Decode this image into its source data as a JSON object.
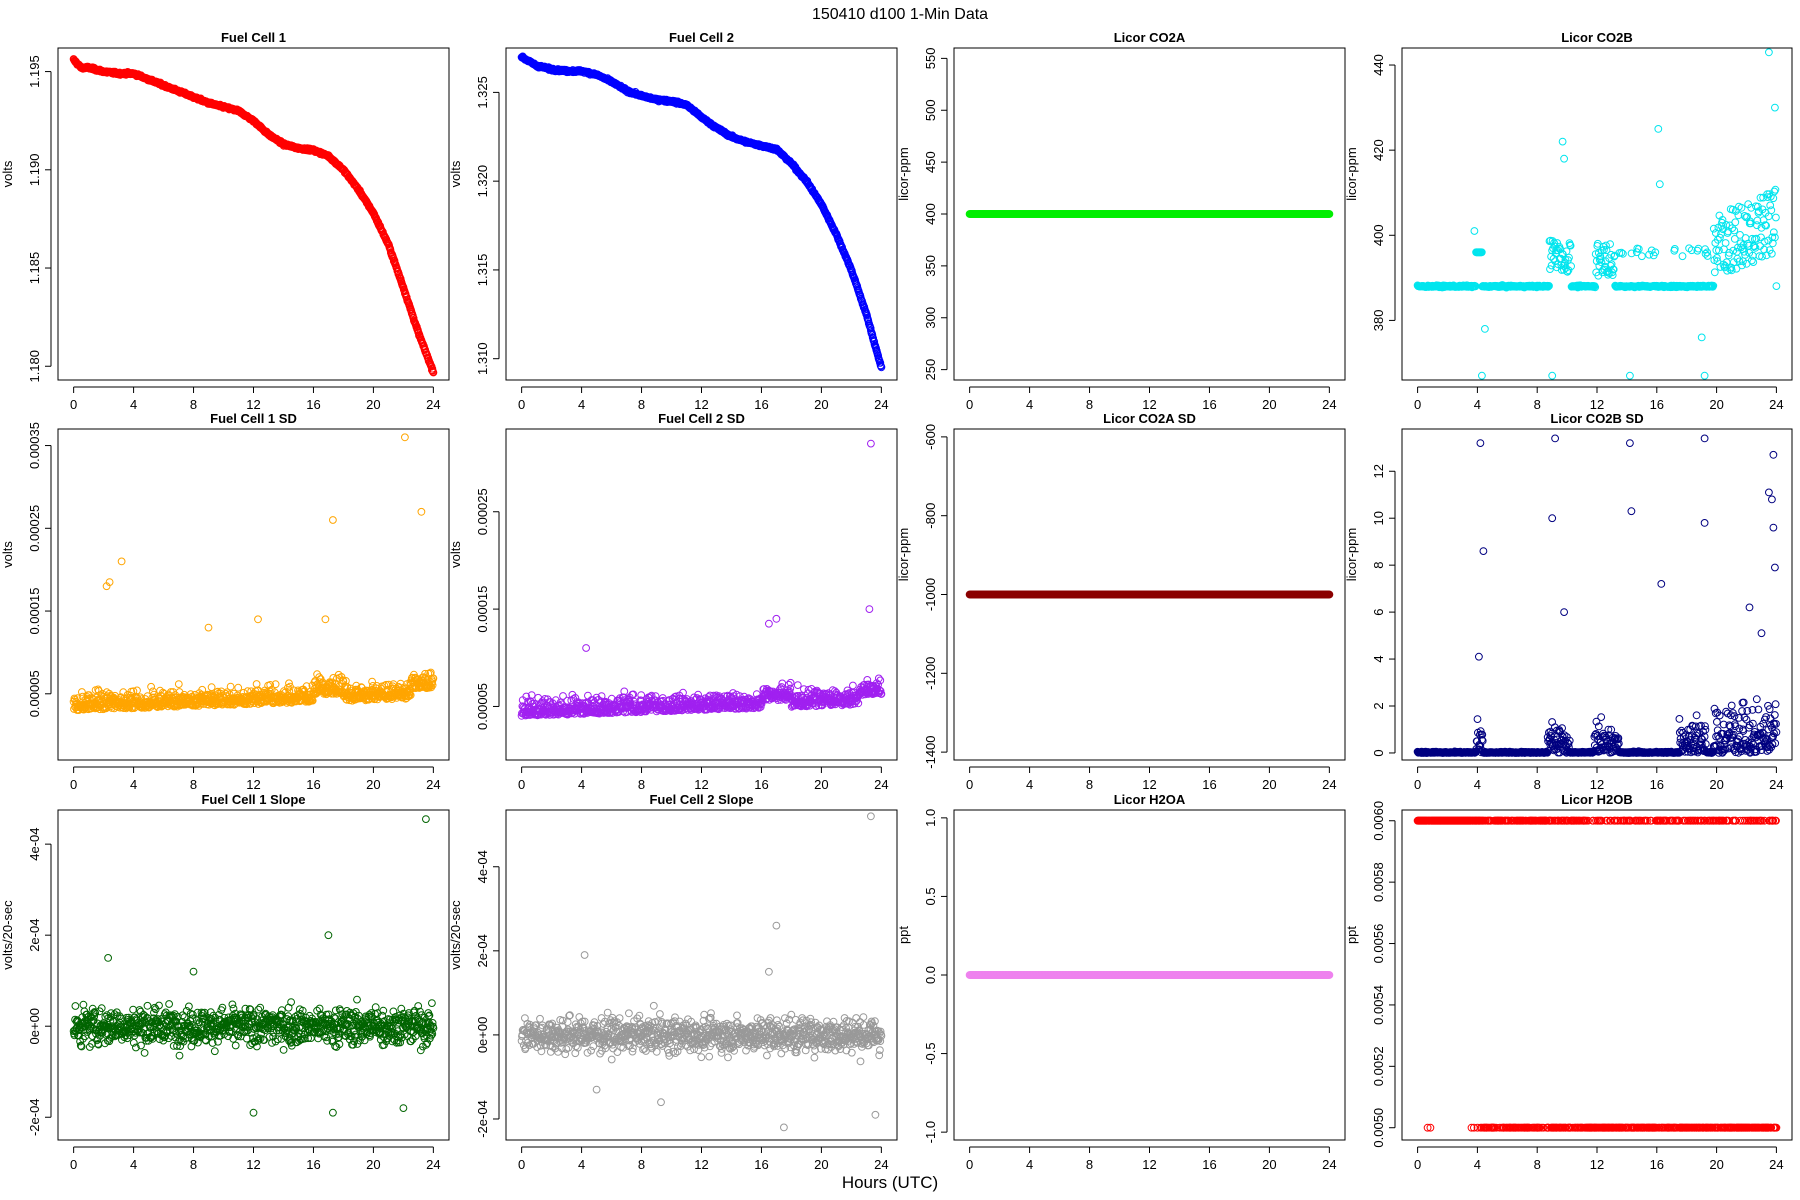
{
  "figure": {
    "title": "150410    d100    1-Min Data",
    "xlabel": "Hours (UTC)"
  },
  "chart_data": [
    {
      "type": "scatter",
      "title": "Fuel Cell 1",
      "ylabel": "volts",
      "color": "#ff0000",
      "xlim": [
        0,
        24
      ],
      "ylim": [
        1.1793,
        1.1962
      ],
      "xticks": [
        0,
        4,
        8,
        12,
        16,
        20,
        24
      ],
      "yticks": [
        1.18,
        1.185,
        1.19,
        1.195
      ],
      "ytick_labels": [
        "1.180",
        "1.185",
        "1.190",
        "1.195"
      ],
      "pattern": "curve",
      "points": [
        [
          0,
          1.1956
        ],
        [
          0.5,
          1.1952
        ],
        [
          1,
          1.1952
        ],
        [
          2,
          1.195
        ],
        [
          3,
          1.1949
        ],
        [
          4,
          1.1949
        ],
        [
          5,
          1.1946
        ],
        [
          6,
          1.1943
        ],
        [
          7,
          1.194
        ],
        [
          8,
          1.1937
        ],
        [
          9,
          1.1934
        ],
        [
          10,
          1.1932
        ],
        [
          11,
          1.193
        ],
        [
          12,
          1.1925
        ],
        [
          13,
          1.1918
        ],
        [
          14,
          1.1913
        ],
        [
          15,
          1.1911
        ],
        [
          16,
          1.191
        ],
        [
          17,
          1.1907
        ],
        [
          18,
          1.19
        ],
        [
          19,
          1.189
        ],
        [
          20,
          1.1878
        ],
        [
          21,
          1.1862
        ],
        [
          22,
          1.184
        ],
        [
          23,
          1.1817
        ],
        [
          24,
          1.1797
        ]
      ]
    },
    {
      "type": "scatter",
      "title": "Fuel Cell 2",
      "ylabel": "volts",
      "color": "#0000ff",
      "xlim": [
        0,
        24
      ],
      "ylim": [
        1.3088,
        1.3275
      ],
      "xticks": [
        0,
        4,
        8,
        12,
        16,
        20,
        24
      ],
      "yticks": [
        1.31,
        1.315,
        1.32,
        1.325
      ],
      "ytick_labels": [
        "1.310",
        "1.315",
        "1.320",
        "1.325"
      ],
      "pattern": "curve",
      "points": [
        [
          0,
          1.327
        ],
        [
          1,
          1.3265
        ],
        [
          2,
          1.3263
        ],
        [
          3,
          1.3262
        ],
        [
          4,
          1.3262
        ],
        [
          5,
          1.326
        ],
        [
          6,
          1.3256
        ],
        [
          7,
          1.3251
        ],
        [
          8,
          1.3248
        ],
        [
          9,
          1.3246
        ],
        [
          10,
          1.3245
        ],
        [
          11,
          1.3243
        ],
        [
          12,
          1.3236
        ],
        [
          13,
          1.323
        ],
        [
          14,
          1.3225
        ],
        [
          15,
          1.3222
        ],
        [
          16,
          1.322
        ],
        [
          17,
          1.3218
        ],
        [
          18,
          1.321
        ],
        [
          19,
          1.32
        ],
        [
          20,
          1.3187
        ],
        [
          21,
          1.317
        ],
        [
          22,
          1.315
        ],
        [
          23,
          1.3125
        ],
        [
          24,
          1.3095
        ]
      ]
    },
    {
      "type": "scatter",
      "title": "Licor CO2A",
      "ylabel": "licor-ppm",
      "color": "#00ee00",
      "xlim": [
        0,
        24
      ],
      "ylim": [
        240,
        560
      ],
      "xticks": [
        0,
        4,
        8,
        12,
        16,
        20,
        24
      ],
      "yticks": [
        250,
        300,
        350,
        400,
        450,
        500,
        550
      ],
      "ytick_labels": [
        "250",
        "300",
        "350",
        "400",
        "450",
        "500",
        "550"
      ],
      "pattern": "flat",
      "level": 400
    },
    {
      "type": "scatter",
      "title": "Licor CO2B",
      "ylabel": "licor-ppm",
      "color": "#00e5ee",
      "xlim": [
        0,
        24
      ],
      "ylim": [
        366,
        444
      ],
      "xticks": [
        0,
        4,
        8,
        12,
        16,
        20,
        24
      ],
      "yticks": [
        380,
        400,
        420,
        440
      ],
      "ytick_labels": [
        "380",
        "400",
        "420",
        "440"
      ],
      "pattern": "spiky",
      "level": 388,
      "highlights": [
        [
          9.7,
          422
        ],
        [
          9.8,
          418
        ],
        [
          16.1,
          425
        ],
        [
          16.2,
          412
        ],
        [
          23.5,
          443
        ],
        [
          23.9,
          430
        ],
        [
          4.3,
          367
        ],
        [
          9.0,
          367
        ],
        [
          14.2,
          367
        ],
        [
          19.2,
          367
        ],
        [
          3.8,
          401
        ],
        [
          4.5,
          378
        ],
        [
          19.0,
          376
        ]
      ]
    },
    {
      "type": "scatter",
      "title": "Fuel Cell 1 SD",
      "ylabel": "volts",
      "color": "#ffa500",
      "xlim": [
        0,
        24
      ],
      "ylim": [
        -3e-05,
        0.00037
      ],
      "xticks": [
        0,
        4,
        8,
        12,
        16,
        20,
        24
      ],
      "yticks": [
        5e-05,
        0.00015,
        0.00025,
        0.00035
      ],
      "ytick_labels": [
        "0.00005",
        "0.00015",
        "0.00025",
        "0.00035"
      ],
      "pattern": "noise",
      "base": 3e-05,
      "spread": 3e-05,
      "highlights": [
        [
          22.1,
          0.00036
        ],
        [
          23.2,
          0.00027
        ],
        [
          17.3,
          0.00026
        ],
        [
          3.2,
          0.00021
        ],
        [
          2.2,
          0.00018
        ],
        [
          2.4,
          0.000185
        ],
        [
          9,
          0.00013
        ],
        [
          12.3,
          0.00014
        ],
        [
          16.8,
          0.00014
        ]
      ]
    },
    {
      "type": "scatter",
      "title": "Fuel Cell 2 SD",
      "ylabel": "volts",
      "color": "#a020f0",
      "xlim": [
        0,
        24
      ],
      "ylim": [
        -5e-06,
        0.000335
      ],
      "xticks": [
        0,
        4,
        8,
        12,
        16,
        20,
        24
      ],
      "yticks": [
        5e-05,
        0.00015,
        0.00025
      ],
      "ytick_labels": [
        "0.00005",
        "0.00015",
        "0.00025"
      ],
      "pattern": "noise",
      "base": 4e-05,
      "spread": 2.5e-05,
      "highlights": [
        [
          23.3,
          0.00032
        ],
        [
          23.2,
          0.00015
        ],
        [
          16.5,
          0.000135
        ],
        [
          17,
          0.00014
        ],
        [
          4.3,
          0.00011
        ]
      ]
    },
    {
      "type": "scatter",
      "title": "Licor CO2A SD",
      "ylabel": "licor-ppm",
      "color": "#8b0000",
      "xlim": [
        0,
        24
      ],
      "ylim": [
        -1420,
        -580
      ],
      "xticks": [
        0,
        4,
        8,
        12,
        16,
        20,
        24
      ],
      "yticks": [
        -1400,
        -1200,
        -1000,
        -800,
        -600
      ],
      "ytick_labels": [
        "-1400",
        "-1200",
        "-1000",
        "-800",
        "-600"
      ],
      "pattern": "flat",
      "level": -1000
    },
    {
      "type": "scatter",
      "title": "Licor CO2B SD",
      "ylabel": "licor-ppm",
      "color": "#000080",
      "xlim": [
        0,
        24
      ],
      "ylim": [
        -0.3,
        13.8
      ],
      "xticks": [
        0,
        4,
        8,
        12,
        16,
        20,
        24
      ],
      "yticks": [
        0,
        2,
        4,
        6,
        8,
        10,
        12
      ],
      "ytick_labels": [
        "0",
        "2",
        "4",
        "6",
        "8",
        "10",
        "12"
      ],
      "pattern": "sdspiky",
      "highlights": [
        [
          4.2,
          13.2
        ],
        [
          9.2,
          13.4
        ],
        [
          14.2,
          13.2
        ],
        [
          19.2,
          13.4
        ],
        [
          4.4,
          8.6
        ],
        [
          9.0,
          10
        ],
        [
          14.3,
          10.3
        ],
        [
          19.2,
          9.8
        ],
        [
          23.8,
          12.7
        ],
        [
          23.5,
          11.1
        ],
        [
          23.7,
          10.8
        ],
        [
          23.8,
          9.6
        ],
        [
          16.3,
          7.2
        ],
        [
          4.1,
          4.1
        ],
        [
          23.9,
          7.9
        ],
        [
          22.2,
          6.2
        ],
        [
          23,
          5.1
        ],
        [
          9.8,
          6
        ]
      ]
    },
    {
      "type": "scatter",
      "title": "Fuel Cell 1 Slope",
      "ylabel": "volts/20-sec",
      "color": "#006400",
      "xlim": [
        0,
        24
      ],
      "ylim": [
        -0.00025,
        0.000475
      ],
      "xticks": [
        0,
        4,
        8,
        12,
        16,
        20,
        24
      ],
      "yticks": [
        -0.0002,
        0,
        0.0002,
        0.0004
      ],
      "ytick_labels": [
        "-2e-04",
        "0e+00",
        "2e-04",
        "4e-04"
      ],
      "pattern": "slope",
      "spread": 4e-05,
      "highlights": [
        [
          23.5,
          0.000455
        ],
        [
          17,
          0.0002
        ],
        [
          2.3,
          0.00015
        ],
        [
          8,
          0.00012
        ],
        [
          17.3,
          -0.00019
        ],
        [
          12,
          -0.00019
        ],
        [
          22,
          -0.00018
        ]
      ]
    },
    {
      "type": "scatter",
      "title": "Fuel Cell 2 Slope",
      "ylabel": "volts/20-sec",
      "color": "#999999",
      "xlim": [
        0,
        24
      ],
      "ylim": [
        -0.00025,
        0.000535
      ],
      "xticks": [
        0,
        4,
        8,
        12,
        16,
        20,
        24
      ],
      "yticks": [
        -0.0002,
        0,
        0.0002,
        0.0004
      ],
      "ytick_labels": [
        "-2e-04",
        "0e+00",
        "2e-04",
        "4e-04"
      ],
      "pattern": "slope",
      "spread": 4e-05,
      "highlights": [
        [
          23.3,
          0.00052
        ],
        [
          17,
          0.00026
        ],
        [
          4.2,
          0.00019
        ],
        [
          16.5,
          0.00015
        ],
        [
          17.5,
          -0.00022
        ],
        [
          5,
          -0.00013
        ],
        [
          9.3,
          -0.00016
        ],
        [
          23.6,
          -0.00019
        ]
      ]
    },
    {
      "type": "scatter",
      "title": "Licor H2OA",
      "ylabel": "ppt",
      "color": "#ee82ee",
      "xlim": [
        0,
        24
      ],
      "ylim": [
        -1.05,
        1.05
      ],
      "xticks": [
        0,
        4,
        8,
        12,
        16,
        20,
        24
      ],
      "yticks": [
        -1,
        -0.5,
        0,
        0.5,
        1
      ],
      "ytick_labels": [
        "-1.0",
        "-0.5",
        "0.0",
        "0.5",
        "1.0"
      ],
      "pattern": "flat",
      "level": 0
    },
    {
      "type": "scatter",
      "title": "Licor H2OB",
      "ylabel": "ppt",
      "color": "#ff0000",
      "xlim": [
        0,
        24
      ],
      "ylim": [
        0.00496,
        0.006035
      ],
      "xticks": [
        0,
        4,
        8,
        12,
        16,
        20,
        24
      ],
      "yticks": [
        0.005,
        0.0052,
        0.0054,
        0.0056,
        0.0058,
        0.006
      ],
      "ytick_labels": [
        "0.0050",
        "0.0052",
        "0.0054",
        "0.0056",
        "0.0058",
        "0.0060"
      ],
      "pattern": "twolevel",
      "levels": [
        0.006,
        0.005
      ]
    }
  ]
}
